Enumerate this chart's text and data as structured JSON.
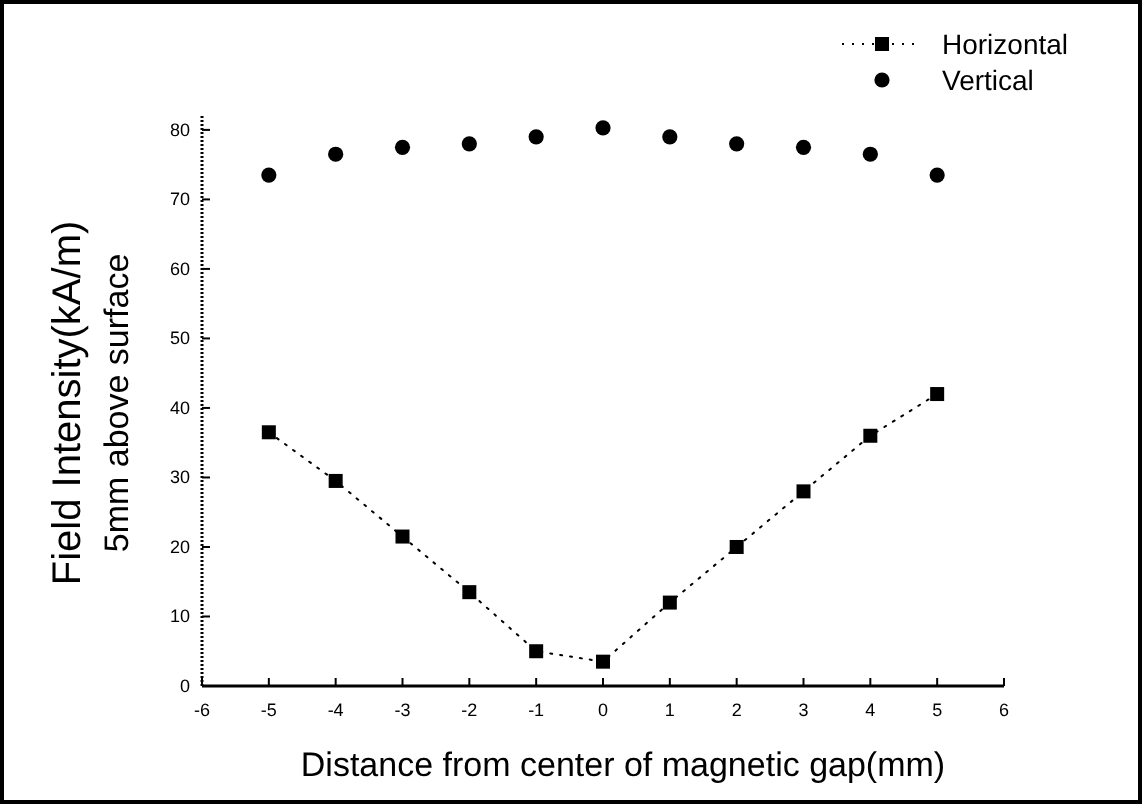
{
  "chart_data": {
    "type": "scatter",
    "xlabel": "Distance from center of magnetic gap(mm)",
    "ylabel": "Field Intensity(kA/m)\n5mm above surface",
    "x": [
      -5,
      -4,
      -3,
      -2,
      -1,
      0,
      1,
      2,
      3,
      4,
      5
    ],
    "series": [
      {
        "name": "Horizontal",
        "type": "line",
        "color": "#000000",
        "marker": "square",
        "line_style": "dotted",
        "values": [
          36.5,
          29.5,
          21.5,
          13.5,
          5,
          3.5,
          12,
          20,
          28,
          36,
          42
        ]
      },
      {
        "name": "Vertical",
        "color": "#000000",
        "marker": "circle",
        "values": [
          73.5,
          76.5,
          77.5,
          78,
          79,
          80.3,
          79,
          78,
          77.5,
          76.5,
          73.5
        ]
      }
    ],
    "xlim": [
      -6,
      6
    ],
    "xticks": [
      -6,
      -5,
      -4,
      -3,
      -2,
      -1,
      0,
      1,
      2,
      3,
      4,
      5,
      6
    ],
    "ylim": [
      0,
      82
    ],
    "yticks": [
      0,
      10,
      20,
      30,
      40,
      50,
      60,
      70,
      80
    ],
    "grid": false,
    "legend": "top right"
  }
}
